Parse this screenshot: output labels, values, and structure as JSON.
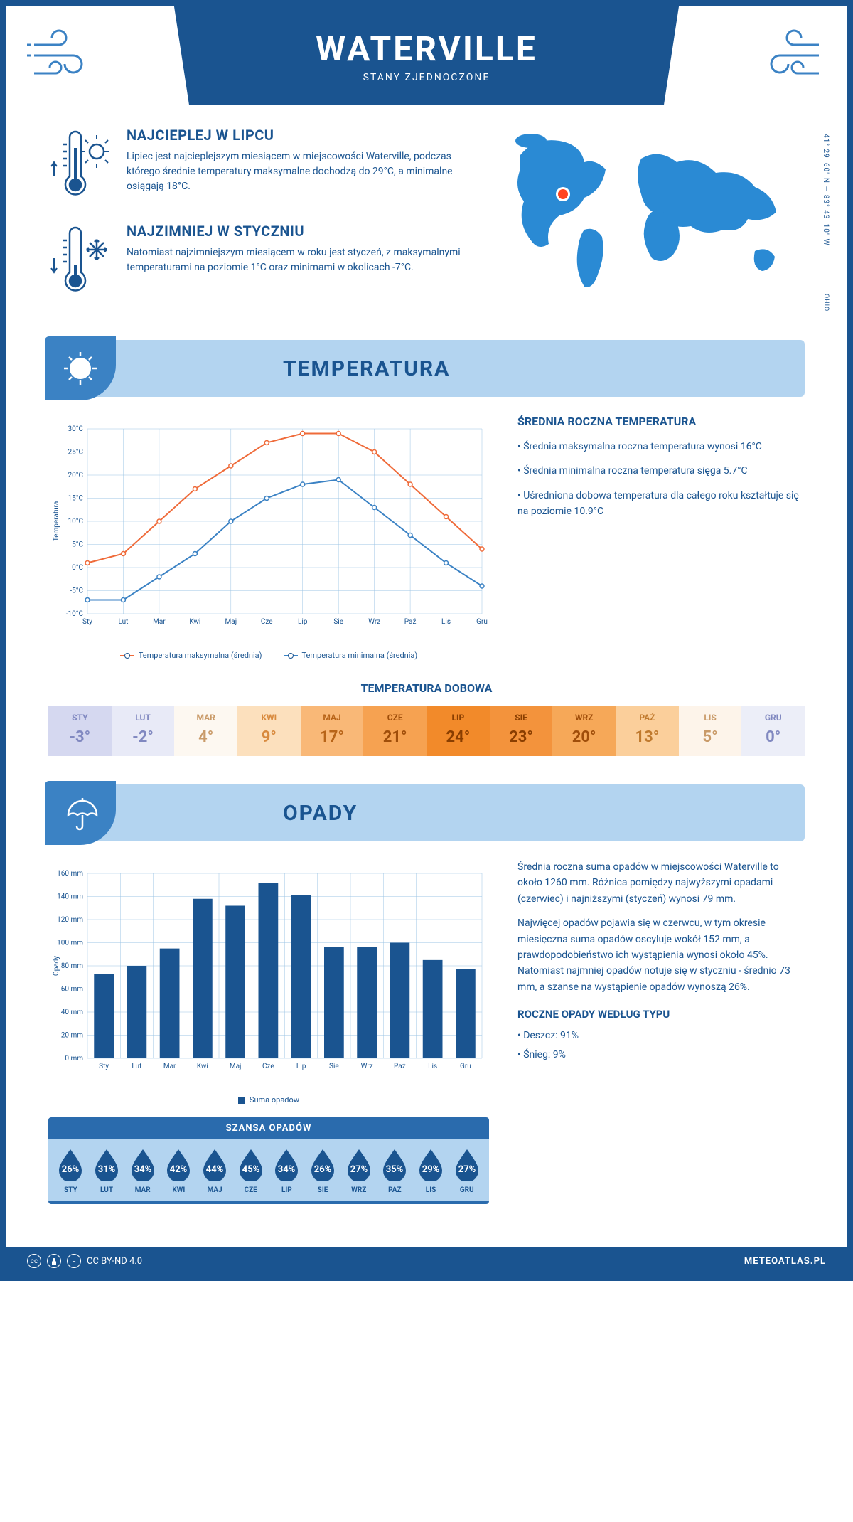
{
  "header": {
    "title": "WATERVILLE",
    "subtitle": "STANY ZJEDNOCZONE"
  },
  "coords": "41° 29' 60\" N — 83° 43' 10\" W",
  "region": "OHIO",
  "warm": {
    "title": "NAJCIEPLEJ W LIPCU",
    "text": "Lipiec jest najcieplejszym miesiącem w miejscowości Waterville, podczas którego średnie temperatury maksymalne dochodzą do 29°C, a minimalne osiągają 18°C."
  },
  "cold": {
    "title": "NAJZIMNIEJ W STYCZNIU",
    "text": "Natomiast najzimniejszym miesiącem w roku jest styczeń, z maksymalnymi temperaturami na poziomie 1°C oraz minimami w okolicach -7°C."
  },
  "temp_section": {
    "title": "TEMPERATURA"
  },
  "temp_chart": {
    "type": "line",
    "months": [
      "Sty",
      "Lut",
      "Mar",
      "Kwi",
      "Maj",
      "Cze",
      "Lip",
      "Sie",
      "Wrz",
      "Paź",
      "Lis",
      "Gru"
    ],
    "max_series": [
      1,
      3,
      10,
      17,
      22,
      27,
      29,
      29,
      25,
      18,
      11,
      4
    ],
    "min_series": [
      -7,
      -7,
      -2,
      3,
      10,
      15,
      18,
      19,
      13,
      7,
      1,
      -4
    ],
    "max_color": "#ef6b3a",
    "min_color": "#3b82c4",
    "grid_color": "#9cc4e4",
    "ylabel": "Temperatura",
    "ylim": [
      -10,
      30
    ],
    "ytick_step": 5,
    "legend_max": "Temperatura maksymalna (średnia)",
    "legend_min": "Temperatura minimalna (średnia)"
  },
  "avg_temp": {
    "title": "ŚREDNIA ROCZNA TEMPERATURA",
    "bullets": [
      "• Średnia maksymalna roczna temperatura wynosi 16°C",
      "• Średnia minimalna roczna temperatura sięga 5.7°C",
      "• Uśredniona dobowa temperatura dla całego roku kształtuje się na poziomie 10.9°C"
    ]
  },
  "daily_temp": {
    "title": "TEMPERATURA DOBOWA",
    "cells": [
      {
        "m": "STY",
        "v": "-3°",
        "bg": "#d5d8f0",
        "fg": "#8088c0"
      },
      {
        "m": "LUT",
        "v": "-2°",
        "bg": "#e8eaf7",
        "fg": "#8088c0"
      },
      {
        "m": "MAR",
        "v": "4°",
        "bg": "#fdf8f1",
        "fg": "#c99a68"
      },
      {
        "m": "KWI",
        "v": "9°",
        "bg": "#fce0bd",
        "fg": "#d88a3e"
      },
      {
        "m": "MAJ",
        "v": "17°",
        "bg": "#f9b877",
        "fg": "#b86418"
      },
      {
        "m": "CZE",
        "v": "21°",
        "bg": "#f6a251",
        "fg": "#a04e0a"
      },
      {
        "m": "LIP",
        "v": "24°",
        "bg": "#f28a2a",
        "fg": "#8a3e00"
      },
      {
        "m": "SIE",
        "v": "23°",
        "bg": "#f3933c",
        "fg": "#8a3e00"
      },
      {
        "m": "WRZ",
        "v": "20°",
        "bg": "#f6a858",
        "fg": "#a04e0a"
      },
      {
        "m": "PAŹ",
        "v": "13°",
        "bg": "#fbcf9b",
        "fg": "#c07a2e"
      },
      {
        "m": "LIS",
        "v": "5°",
        "bg": "#fdf4ea",
        "fg": "#c99a68"
      },
      {
        "m": "GRU",
        "v": "0°",
        "bg": "#eceef8",
        "fg": "#8088c0"
      }
    ]
  },
  "precip_section": {
    "title": "OPADY"
  },
  "precip_chart": {
    "type": "bar",
    "months": [
      "Sty",
      "Lut",
      "Mar",
      "Kwi",
      "Maj",
      "Cze",
      "Lip",
      "Sie",
      "Wrz",
      "Paź",
      "Lis",
      "Gru"
    ],
    "values": [
      73,
      80,
      95,
      138,
      132,
      152,
      141,
      96,
      96,
      100,
      85,
      77
    ],
    "bar_color": "#1a5490",
    "grid_color": "#9cc4e4",
    "ylabel": "Opady",
    "ylim": [
      0,
      160
    ],
    "ytick_step": 20,
    "unit": "mm",
    "legend": "Suma opadów"
  },
  "precip_text": {
    "p1": "Średnia roczna suma opadów w miejscowości Waterville to około 1260 mm. Różnica pomiędzy najwyższymi opadami (czerwiec) i najniższymi (styczeń) wynosi 79 mm.",
    "p2": "Najwięcej opadów pojawia się w czerwcu, w tym okresie miesięczna suma opadów oscyluje wokół 152 mm, a prawdopodobieństwo ich wystąpienia wynosi około 45%. Natomiast najmniej opadów notuje się w styczniu - średnio 73 mm, a szanse na wystąpienie opadów wynoszą 26%."
  },
  "chance": {
    "title": "SZANSA OPADÓW",
    "drop_color": "#1a5490",
    "items": [
      {
        "m": "STY",
        "p": "26%"
      },
      {
        "m": "LUT",
        "p": "31%"
      },
      {
        "m": "MAR",
        "p": "34%"
      },
      {
        "m": "KWI",
        "p": "42%"
      },
      {
        "m": "MAJ",
        "p": "44%"
      },
      {
        "m": "CZE",
        "p": "45%"
      },
      {
        "m": "LIP",
        "p": "34%"
      },
      {
        "m": "SIE",
        "p": "26%"
      },
      {
        "m": "WRZ",
        "p": "27%"
      },
      {
        "m": "PAŹ",
        "p": "35%"
      },
      {
        "m": "LIS",
        "p": "29%"
      },
      {
        "m": "GRU",
        "p": "27%"
      }
    ]
  },
  "precip_types": {
    "title": "ROCZNE OPADY WEDŁUG TYPU",
    "rain": "• Deszcz: 91%",
    "snow": "• Śnieg: 9%"
  },
  "footer": {
    "license": "CC BY-ND 4.0",
    "brand": "METEOATLAS.PL"
  }
}
